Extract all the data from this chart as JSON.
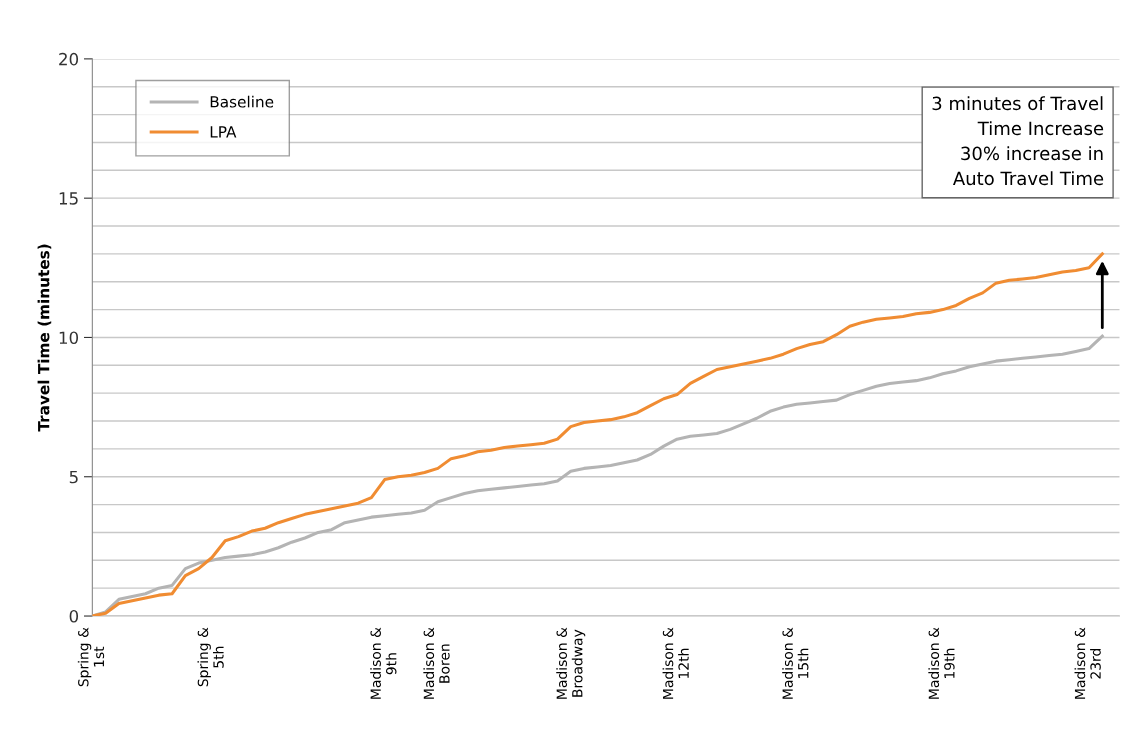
{
  "chart_data": {
    "type": "line",
    "ylabel": "Travel Time (minutes)",
    "categories": [
      "Spring &\n1st",
      null,
      null,
      null,
      null,
      null,
      null,
      null,
      null,
      "Spring &\n5th",
      null,
      null,
      null,
      null,
      null,
      null,
      null,
      null,
      null,
      null,
      null,
      null,
      "Madison &\n9th",
      null,
      null,
      null,
      "Madison &\nBoren",
      null,
      null,
      null,
      null,
      null,
      null,
      null,
      null,
      null,
      "Madison &\nBroadway",
      null,
      null,
      null,
      null,
      null,
      null,
      null,
      "Madison &\n12th",
      null,
      null,
      null,
      null,
      null,
      null,
      null,
      null,
      "Madison &\n15th",
      null,
      null,
      null,
      null,
      null,
      null,
      null,
      null,
      null,
      null,
      "Madison &\n19th",
      null,
      null,
      null,
      null,
      null,
      null,
      null,
      null,
      null,
      null,
      "Madison &\n23rd",
      null
    ],
    "series": [
      {
        "name": "Baseline",
        "color": "#b4b4b4",
        "values": [
          0,
          0.15,
          0.6,
          0.7,
          0.8,
          1.0,
          1.1,
          1.7,
          1.9,
          2.0,
          2.1,
          2.15,
          2.2,
          2.3,
          2.45,
          2.65,
          2.8,
          3.0,
          3.1,
          3.35,
          3.45,
          3.55,
          3.6,
          3.65,
          3.7,
          3.8,
          4.1,
          4.25,
          4.4,
          4.5,
          4.55,
          4.6,
          4.65,
          4.7,
          4.75,
          4.85,
          5.2,
          5.3,
          5.35,
          5.4,
          5.5,
          5.6,
          5.8,
          6.1,
          6.35,
          6.45,
          6.5,
          6.55,
          6.7,
          6.9,
          7.1,
          7.35,
          7.5,
          7.6,
          7.65,
          7.7,
          7.75,
          7.95,
          8.1,
          8.25,
          8.35,
          8.4,
          8.45,
          8.55,
          8.7,
          8.8,
          8.95,
          9.05,
          9.15,
          9.2,
          9.25,
          9.3,
          9.35,
          9.4,
          9.5,
          9.6,
          10.05
        ]
      },
      {
        "name": "LPA",
        "color": "#f08c32",
        "values": [
          0,
          0.1,
          0.45,
          0.55,
          0.65,
          0.75,
          0.8,
          1.45,
          1.7,
          2.1,
          2.7,
          2.85,
          3.05,
          3.15,
          3.35,
          3.5,
          3.65,
          3.75,
          3.85,
          3.95,
          4.05,
          4.25,
          4.9,
          5.0,
          5.05,
          5.15,
          5.3,
          5.65,
          5.75,
          5.9,
          5.95,
          6.05,
          6.1,
          6.15,
          6.2,
          6.35,
          6.8,
          6.95,
          7.0,
          7.05,
          7.15,
          7.3,
          7.55,
          7.8,
          7.95,
          8.35,
          8.6,
          8.85,
          8.95,
          9.05,
          9.15,
          9.25,
          9.4,
          9.6,
          9.75,
          9.85,
          10.1,
          10.4,
          10.55,
          10.65,
          10.7,
          10.75,
          10.85,
          10.9,
          11.0,
          11.15,
          11.4,
          11.6,
          11.95,
          12.05,
          12.1,
          12.15,
          12.25,
          12.35,
          12.4,
          12.5,
          13.0
        ]
      }
    ],
    "ylim": [
      0,
      20
    ],
    "yticks": [
      0,
      {
        "value": 1,
        "label": null
      },
      {
        "value": 2,
        "label": null
      },
      {
        "value": 3,
        "label": null
      },
      {
        "value": 4,
        "label": null
      },
      5,
      {
        "value": 6,
        "label": null
      },
      {
        "value": 7,
        "label": null
      },
      {
        "value": 8,
        "label": null
      },
      {
        "value": 9,
        "label": null
      },
      10,
      {
        "value": 11,
        "label": null
      },
      {
        "value": 12,
        "label": null
      },
      {
        "value": 13,
        "label": null
      },
      {
        "value": 14,
        "label": null
      },
      15,
      {
        "value": 16,
        "label": null
      },
      {
        "value": 17,
        "label": null
      },
      {
        "value": 18,
        "label": null
      },
      {
        "value": 19,
        "label": null
      },
      20
    ],
    "grid": "y",
    "legend": "top left",
    "marker": "none",
    "line_style": "solid",
    "annotations": [
      "3 minutes of Travel\nTime Increase\n30% increase in\nAuto Travel Time"
    ]
  }
}
